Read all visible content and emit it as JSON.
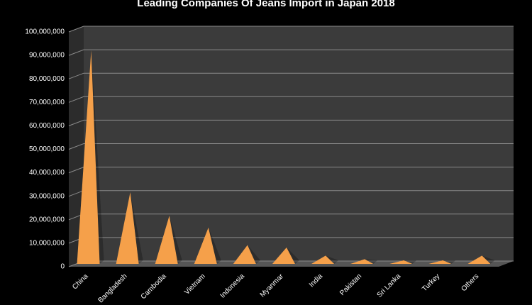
{
  "chart_data": {
    "type": "pyramid-bar",
    "title": "Leading Companies Of Jeans Import in Japan 2018",
    "categories": [
      "China",
      "Bangladesh",
      "Cambodia",
      "Vietnam",
      "Indonesia",
      "Myanmar",
      "India",
      "Pakistan",
      "Sri Lanka",
      "Turkey",
      "Others"
    ],
    "values": [
      91000000,
      30500000,
      20500000,
      15500000,
      8000000,
      7000000,
      3500000,
      2000000,
      1500000,
      1500000,
      3500000
    ],
    "color": "#f5a04a",
    "ylim": [
      0,
      100000000
    ],
    "yticks": [
      0,
      {
        "value": 10000000,
        "label": "10,000,000"
      },
      {
        "value": 20000000,
        "label": "20,000,000"
      },
      {
        "value": 30000000,
        "label": "30,000,000"
      },
      {
        "value": 40000000,
        "label": "40,000,000"
      },
      {
        "value": 50000000,
        "label": "50,000,000"
      },
      {
        "value": 60000000,
        "label": "60,000,000"
      },
      {
        "value": 70000000,
        "label": "70,000,000"
      },
      {
        "value": 80000000,
        "label": "80,000,000"
      },
      {
        "value": 90000000,
        "label": "90,000,000"
      },
      {
        "value": 100000000,
        "label": "100,000,000"
      }
    ],
    "grid": true
  }
}
